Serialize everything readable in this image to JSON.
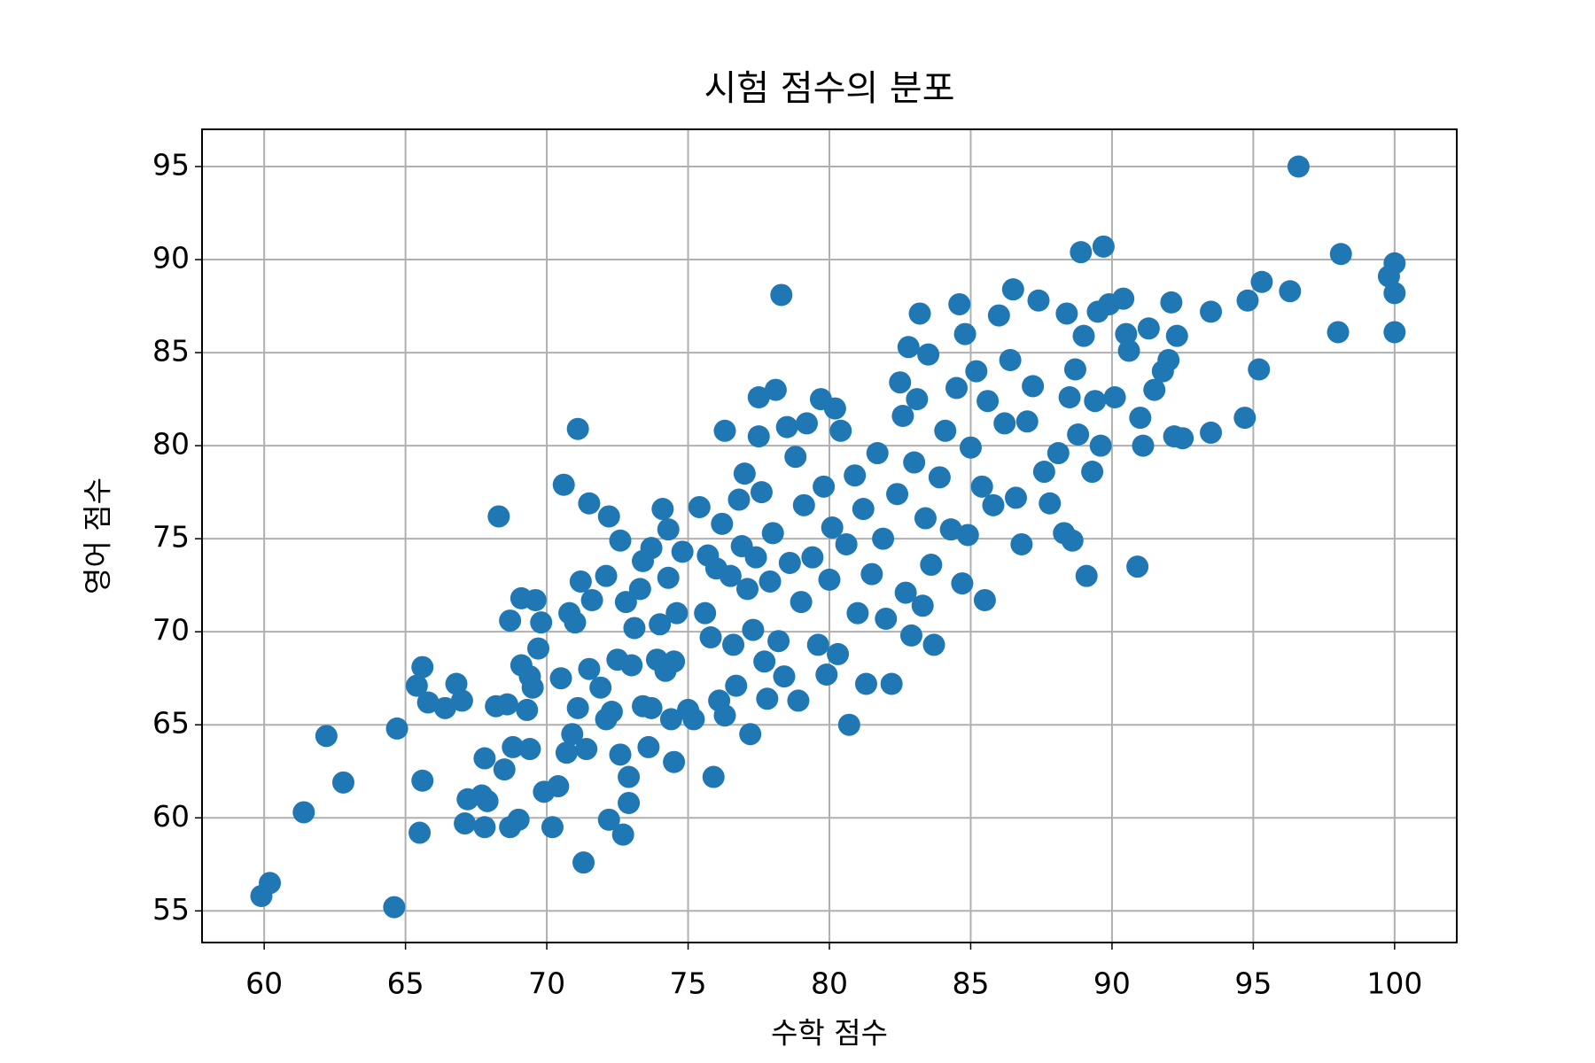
{
  "chart_data": {
    "type": "scatter",
    "title": "시험 점수의 분포",
    "x_label": "수학 점수",
    "y_label": "영어 점수",
    "color": "#1f77b4",
    "grid": true,
    "xlim": [
      57.8,
      102.2
    ],
    "ylim": [
      53.3,
      97.0
    ],
    "xticks": [
      60,
      65,
      70,
      75,
      80,
      85,
      90,
      95,
      100
    ],
    "yticks": [
      55,
      60,
      65,
      70,
      75,
      80,
      85,
      90,
      95
    ],
    "x": [
      59.9,
      60.2,
      64.6,
      61.4,
      62.2,
      62.8,
      64.7,
      65.5,
      65.6,
      65.4,
      65.6,
      65.8,
      66.4,
      66.8,
      67.0,
      67.1,
      67.2,
      67.7,
      67.8,
      67.9,
      67.8,
      68.2,
      68.5,
      68.3,
      68.6,
      68.7,
      68.8,
      68.7,
      69.0,
      69.1,
      69.1,
      69.3,
      69.4,
      69.4,
      69.5,
      69.6,
      69.7,
      69.8,
      69.9,
      70.2,
      70.4,
      70.5,
      70.6,
      70.7,
      70.8,
      70.9,
      71.0,
      71.1,
      71.1,
      71.2,
      71.3,
      71.4,
      71.5,
      71.5,
      71.6,
      71.9,
      72.1,
      72.1,
      72.2,
      72.2,
      72.3,
      72.5,
      72.6,
      72.6,
      72.7,
      72.8,
      72.9,
      72.9,
      73.0,
      73.1,
      73.3,
      73.4,
      73.4,
      73.6,
      73.7,
      73.7,
      73.9,
      74.0,
      74.1,
      74.2,
      74.3,
      74.3,
      74.4,
      74.5,
      74.5,
      74.6,
      74.8,
      75.0,
      75.2,
      75.4,
      75.6,
      75.7,
      75.8,
      75.9,
      76.0,
      76.1,
      76.2,
      76.3,
      76.3,
      76.5,
      76.6,
      76.7,
      76.8,
      76.9,
      77.0,
      77.1,
      77.2,
      77.3,
      77.4,
      77.5,
      77.5,
      77.6,
      77.7,
      77.8,
      77.9,
      78.0,
      78.1,
      78.2,
      78.3,
      78.4,
      78.5,
      78.6,
      78.8,
      78.9,
      79.0,
      79.1,
      79.2,
      79.4,
      79.6,
      79.7,
      79.8,
      79.9,
      80.0,
      80.1,
      80.2,
      80.3,
      80.4,
      80.6,
      80.7,
      80.9,
      81.0,
      81.2,
      81.3,
      81.5,
      81.7,
      81.9,
      82.0,
      82.2,
      82.4,
      82.5,
      82.6,
      82.7,
      82.8,
      82.9,
      83.0,
      83.1,
      83.2,
      83.3,
      83.4,
      83.5,
      83.6,
      83.7,
      83.9,
      84.1,
      84.3,
      84.5,
      84.6,
      84.7,
      84.8,
      84.9,
      85.0,
      85.2,
      85.4,
      85.5,
      85.6,
      85.8,
      86.0,
      86.2,
      86.4,
      86.5,
      86.6,
      86.8,
      87.0,
      87.2,
      87.4,
      87.6,
      87.8,
      88.1,
      88.3,
      88.4,
      88.5,
      88.6,
      88.7,
      88.8,
      88.9,
      89.0,
      89.1,
      89.3,
      89.4,
      89.5,
      89.6,
      89.7,
      89.9,
      90.1,
      90.4,
      90.5,
      90.6,
      90.9,
      91.0,
      91.1,
      91.3,
      91.5,
      91.8,
      92.0,
      92.1,
      92.2,
      92.3,
      92.5,
      93.5,
      93.5,
      94.8,
      94.7,
      95.2,
      95.3,
      96.3,
      96.6,
      98.0,
      98.1,
      99.8,
      100.0,
      100.0,
      100.0
    ],
    "y": [
      55.8,
      56.5,
      55.2,
      60.3,
      64.4,
      61.9,
      64.8,
      59.2,
      62.0,
      67.1,
      68.1,
      66.2,
      65.9,
      67.2,
      66.3,
      59.7,
      61.0,
      61.2,
      59.5,
      60.9,
      63.2,
      66.0,
      62.6,
      76.2,
      66.1,
      59.5,
      63.8,
      70.6,
      59.9,
      68.2,
      71.8,
      65.8,
      63.7,
      67.6,
      67.0,
      71.7,
      69.1,
      70.5,
      61.4,
      59.5,
      61.7,
      67.5,
      77.9,
      63.5,
      71.0,
      64.5,
      70.5,
      65.9,
      80.9,
      72.7,
      57.6,
      63.7,
      76.9,
      68.0,
      71.7,
      67.0,
      65.3,
      73.0,
      59.9,
      76.2,
      65.7,
      68.5,
      63.4,
      74.9,
      59.1,
      71.6,
      60.8,
      62.2,
      68.2,
      70.2,
      72.3,
      66.0,
      73.8,
      63.8,
      65.9,
      74.5,
      68.5,
      70.4,
      76.6,
      67.9,
      75.5,
      72.9,
      65.3,
      63.0,
      68.4,
      71.0,
      74.3,
      65.8,
      65.3,
      76.7,
      71.0,
      74.1,
      69.7,
      62.2,
      73.4,
      66.3,
      75.8,
      80.8,
      65.5,
      73.0,
      69.3,
      67.1,
      77.1,
      74.6,
      78.5,
      72.3,
      64.5,
      70.1,
      74.0,
      80.5,
      82.6,
      77.5,
      68.4,
      66.4,
      72.7,
      75.3,
      83.0,
      69.5,
      88.1,
      67.6,
      81.0,
      73.7,
      79.4,
      66.3,
      71.6,
      76.8,
      81.2,
      74.0,
      69.3,
      82.5,
      77.8,
      67.7,
      72.8,
      75.6,
      82.0,
      68.8,
      80.8,
      74.7,
      65.0,
      78.4,
      71.0,
      76.6,
      67.2,
      73.1,
      79.6,
      75.0,
      70.7,
      67.2,
      77.4,
      83.4,
      81.6,
      72.1,
      85.3,
      69.8,
      79.1,
      82.5,
      87.1,
      71.4,
      76.1,
      84.9,
      73.6,
      69.3,
      78.3,
      80.8,
      75.5,
      83.1,
      87.6,
      72.6,
      86.0,
      75.2,
      79.9,
      84.0,
      77.8,
      71.7,
      82.4,
      76.8,
      87.0,
      81.2,
      84.6,
      88.4,
      77.2,
      74.7,
      81.3,
      83.2,
      87.8,
      78.6,
      76.9,
      79.6,
      75.3,
      87.1,
      82.6,
      74.9,
      84.1,
      80.6,
      90.4,
      85.9,
      73.0,
      78.6,
      82.4,
      87.2,
      80.0,
      90.7,
      87.6,
      82.6,
      87.9,
      86.0,
      85.1,
      73.5,
      81.5,
      80.0,
      86.3,
      83.0,
      84.0,
      84.6,
      87.7,
      80.5,
      85.9,
      80.4,
      87.2,
      80.7,
      87.8,
      81.5,
      84.1,
      88.8,
      88.3,
      95.0,
      86.1,
      90.3,
      89.1,
      89.8,
      88.2,
      86.1
    ]
  }
}
